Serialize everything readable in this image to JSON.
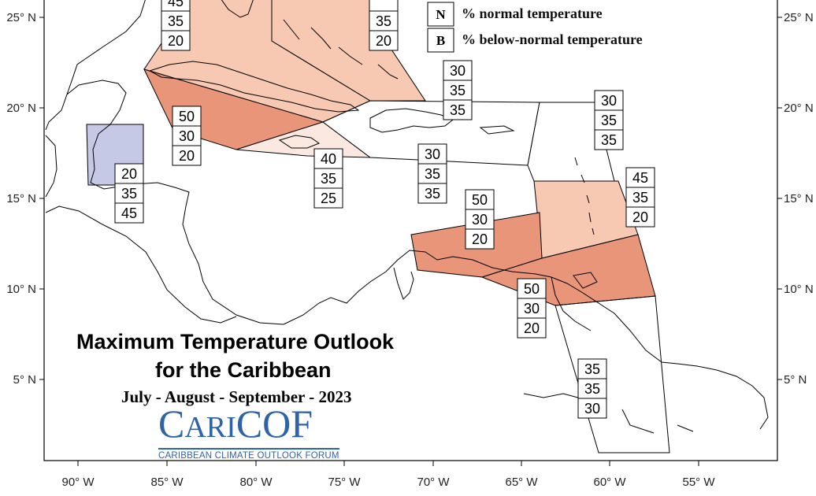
{
  "title": {
    "line1": "Maximum Temperature Outlook",
    "line2": "for the Caribbean",
    "period": "July - August - September - 2023"
  },
  "logo": {
    "big_c": "C",
    "ari": "ARI",
    "cof": "COF",
    "tagline": "CARIBBEAN CLIMATE OUTLOOK FORUM"
  },
  "legend": [
    {
      "key": "N",
      "label": "% normal temperature"
    },
    {
      "key": "B",
      "label": "% below-normal temperature"
    }
  ],
  "axes": {
    "lat_labels": [
      "25° N",
      "20° N",
      "15° N",
      "10° N",
      "5° N"
    ],
    "lon_labels": [
      "90° W",
      "85° W",
      "80° W",
      "75° W",
      "70° W",
      "65° W",
      "60° W",
      "55° W"
    ]
  },
  "colors": {
    "above_light": "#f7c8b2",
    "above_medium": "#e8957a",
    "above_faint": "#fbe8e0",
    "below": "#c5c9e6",
    "outline": "#000000"
  },
  "forecast_boxes": [
    {
      "region": "Bahamas west",
      "values": [
        "45",
        "35",
        "20"
      ]
    },
    {
      "region": "Bahamas east",
      "values": [
        "",
        "35",
        "20"
      ]
    },
    {
      "region": "Hispaniola north",
      "values": [
        "30",
        "35",
        "35"
      ]
    },
    {
      "region": "Leeward Islands north",
      "values": [
        "30",
        "35",
        "35"
      ]
    },
    {
      "region": "Cuba",
      "values": [
        "50",
        "30",
        "20"
      ]
    },
    {
      "region": "Belize",
      "values": [
        "20",
        "35",
        "45"
      ]
    },
    {
      "region": "Jamaica",
      "values": [
        "40",
        "35",
        "25"
      ]
    },
    {
      "region": "Hispaniola south",
      "values": [
        "30",
        "35",
        "35"
      ]
    },
    {
      "region": "Windward Islands",
      "values": [
        "45",
        "35",
        "20"
      ]
    },
    {
      "region": "ABC Islands",
      "values": [
        "50",
        "30",
        "20"
      ]
    },
    {
      "region": "Trinidad and Tobago",
      "values": [
        "50",
        "30",
        "20"
      ]
    },
    {
      "region": "Guianas",
      "values": [
        "35",
        "35",
        "30"
      ]
    }
  ]
}
